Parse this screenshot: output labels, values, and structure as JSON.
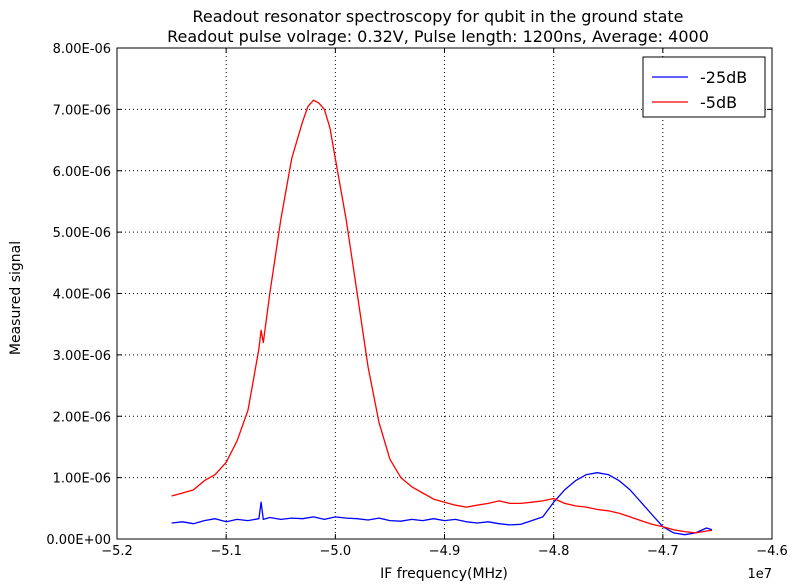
{
  "chart_data": {
    "type": "line",
    "title": "Readout resonator spectroscopy for qubit in the ground state",
    "subtitle": "Readout pulse volrage: 0.32V, Pulse length: 1200ns, Average: 4000",
    "xlabel": "IF frequency(MHz)",
    "ylabel": "Measured signal",
    "x_offset_label": "1e7",
    "xlim": [
      -5.2,
      -4.6
    ],
    "ylim": [
      0,
      8e-06
    ],
    "x_ticks": [
      -5.2,
      -5.1,
      -5.0,
      -4.9,
      -4.8,
      -4.7,
      -4.6
    ],
    "x_tick_labels": [
      "−5.2",
      "−5.1",
      "−5.0",
      "−4.9",
      "−4.8",
      "−4.7",
      "−4.6"
    ],
    "y_ticks": [
      0,
      1e-06,
      2e-06,
      3e-06,
      4e-06,
      5e-06,
      6e-06,
      7e-06,
      8e-06
    ],
    "y_tick_labels": [
      "0.00E+00",
      "1.00E-06",
      "2.00E-06",
      "3.00E-06",
      "4.00E-06",
      "5.00E-06",
      "6.00E-06",
      "7.00E-06",
      "8.00E-06"
    ],
    "grid": true,
    "legend_position": "top-right",
    "series": [
      {
        "name": "-25dB",
        "color": "#0000ff",
        "x": [
          -5.15,
          -5.14,
          -5.13,
          -5.12,
          -5.11,
          -5.1,
          -5.09,
          -5.08,
          -5.07,
          -5.068,
          -5.066,
          -5.06,
          -5.05,
          -5.04,
          -5.03,
          -5.02,
          -5.01,
          -5.0,
          -4.99,
          -4.98,
          -4.97,
          -4.96,
          -4.95,
          -4.94,
          -4.93,
          -4.92,
          -4.91,
          -4.9,
          -4.89,
          -4.88,
          -4.87,
          -4.86,
          -4.85,
          -4.84,
          -4.83,
          -4.82,
          -4.81,
          -4.8,
          -4.79,
          -4.78,
          -4.77,
          -4.76,
          -4.75,
          -4.74,
          -4.73,
          -4.72,
          -4.71,
          -4.7,
          -4.69,
          -4.68,
          -4.67,
          -4.66,
          -4.655
        ],
        "y": [
          2.6e-07,
          2.8e-07,
          2.5e-07,
          3e-07,
          3.3e-07,
          2.8e-07,
          3.2e-07,
          3e-07,
          3.3e-07,
          6e-07,
          3.2e-07,
          3.5e-07,
          3.2e-07,
          3.4e-07,
          3.3e-07,
          3.6e-07,
          3.2e-07,
          3.6e-07,
          3.4e-07,
          3.3e-07,
          3.1e-07,
          3.4e-07,
          3e-07,
          2.9e-07,
          3.2e-07,
          3e-07,
          3.3e-07,
          3e-07,
          3.2e-07,
          2.8e-07,
          2.6e-07,
          2.8e-07,
          2.5e-07,
          2.3e-07,
          2.4e-07,
          3e-07,
          3.6e-07,
          6e-07,
          8e-07,
          9.5e-07,
          1.05e-06,
          1.08e-06,
          1.05e-06,
          9.5e-07,
          8e-07,
          6e-07,
          4e-07,
          2e-07,
          1e-07,
          7e-08,
          1e-07,
          1.8e-07,
          1.5e-07
        ]
      },
      {
        "name": "-5dB",
        "color": "#ff0000",
        "x": [
          -5.15,
          -5.14,
          -5.13,
          -5.12,
          -5.11,
          -5.1,
          -5.09,
          -5.08,
          -5.075,
          -5.07,
          -5.068,
          -5.066,
          -5.06,
          -5.05,
          -5.04,
          -5.03,
          -5.025,
          -5.02,
          -5.015,
          -5.01,
          -5.005,
          -5.0,
          -4.99,
          -4.98,
          -4.97,
          -4.96,
          -4.95,
          -4.94,
          -4.93,
          -4.92,
          -4.91,
          -4.9,
          -4.89,
          -4.88,
          -4.87,
          -4.86,
          -4.85,
          -4.84,
          -4.83,
          -4.82,
          -4.81,
          -4.8,
          -4.79,
          -4.78,
          -4.77,
          -4.76,
          -4.75,
          -4.74,
          -4.73,
          -4.72,
          -4.71,
          -4.7,
          -4.69,
          -4.68,
          -4.67,
          -4.66,
          -4.655
        ],
        "y": [
          7e-07,
          7.5e-07,
          8e-07,
          9.5e-07,
          1.05e-06,
          1.25e-06,
          1.6e-06,
          2.1e-06,
          2.6e-06,
          3.1e-06,
          3.4e-06,
          3.2e-06,
          4e-06,
          5.2e-06,
          6.2e-06,
          6.8e-06,
          7.05e-06,
          7.15e-06,
          7.1e-06,
          7e-06,
          6.7e-06,
          6.2e-06,
          5.2e-06,
          4e-06,
          2.8e-06,
          1.9e-06,
          1.3e-06,
          1e-06,
          8.5e-07,
          7.5e-07,
          6.5e-07,
          6e-07,
          5.5e-07,
          5.2e-07,
          5.5e-07,
          5.8e-07,
          6.2e-07,
          5.8e-07,
          5.8e-07,
          6e-07,
          6.2e-07,
          6.6e-07,
          5.8e-07,
          5.4e-07,
          5.2e-07,
          4.8e-07,
          4.6e-07,
          4.2e-07,
          3.6e-07,
          3e-07,
          2.4e-07,
          2e-07,
          1.5e-07,
          1.2e-07,
          1e-07,
          1.3e-07,
          1.4e-07
        ]
      }
    ]
  }
}
